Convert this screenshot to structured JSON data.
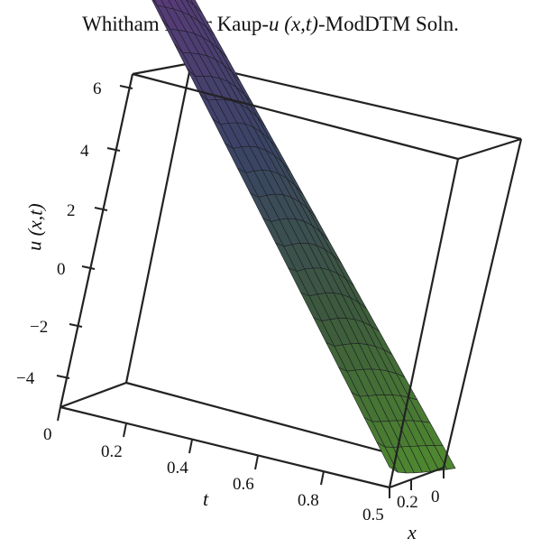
{
  "chart_data": {
    "type": "surface3d",
    "title": {
      "prefix": "Whitham Broer Kaup-",
      "function": "u",
      "args": " (x,t)",
      "suffix": "-ModDTM Soln."
    },
    "xlabel": "x",
    "tlabel": "t",
    "ulabel": "u (x,t)",
    "x_range": [
      0,
      0.5
    ],
    "t_range": [
      0,
      1
    ],
    "u_range": [
      -5,
      6.5
    ],
    "u_ticks": [
      "6",
      "4",
      "2",
      "0",
      "−2",
      "−4"
    ],
    "t_ticks": [
      "0",
      "0.2",
      "0.4",
      "0.6",
      "0.8"
    ],
    "x_ticks": [
      "0.5",
      "0.2",
      "0"
    ],
    "corner_values": {
      "t0_x0": 6.6,
      "t0_x05": 5.0,
      "t1_x0": -4.6,
      "t1_x05": -5.1
    },
    "colormap": [
      "#8a2f9a",
      "#5a3a7a",
      "#3a4466",
      "#3c5a3c",
      "#4f8a2e"
    ],
    "grid": false
  }
}
